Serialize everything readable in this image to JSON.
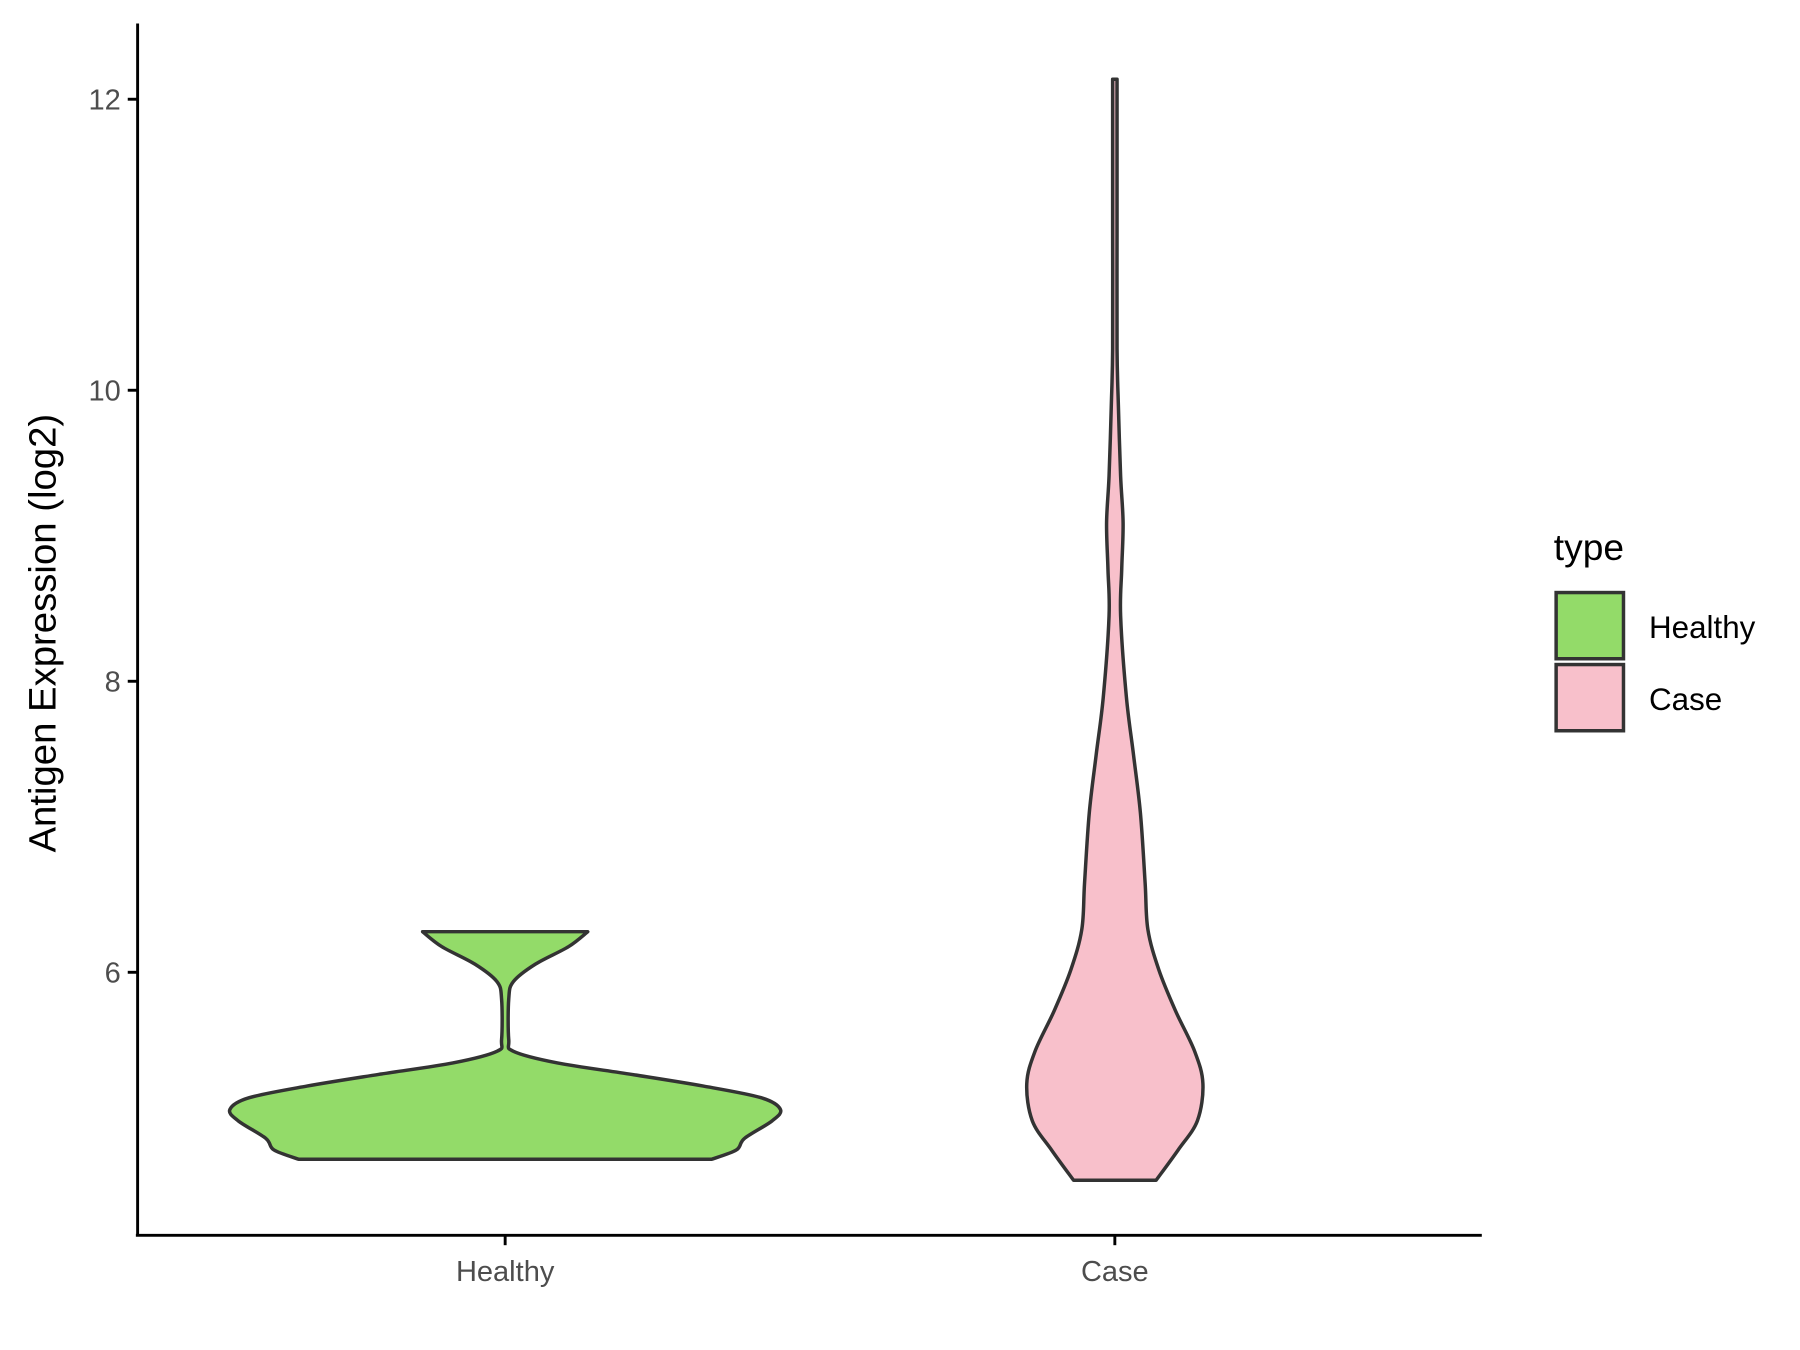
{
  "chart_data": {
    "type": "violin",
    "title": "",
    "xlabel": "",
    "ylabel": "Antigen Expression (log2)",
    "categories": [
      "Healthy",
      "Case"
    ],
    "ylim": [
      4.2,
      12.5
    ],
    "yticks": [
      6,
      8,
      10,
      12
    ],
    "grid": false,
    "legend": {
      "title": "type",
      "placement": "right",
      "entries": [
        "Healthy",
        "Case"
      ]
    },
    "colors": {
      "Healthy": "#93DB69",
      "Case": "#F8C0CB",
      "outline": "#333333"
    },
    "series": [
      {
        "name": "Healthy",
        "density_profile": [
          [
            4.715,
            0.75
          ],
          [
            4.779,
            0.84
          ],
          [
            4.859,
            0.87
          ],
          [
            4.979,
            0.97
          ],
          [
            5.058,
            1.0
          ],
          [
            5.138,
            0.93
          ],
          [
            5.218,
            0.72
          ],
          [
            5.298,
            0.46
          ],
          [
            5.377,
            0.19
          ],
          [
            5.457,
            0.03
          ],
          [
            5.537,
            0.013
          ],
          [
            5.816,
            0.013
          ],
          [
            5.936,
            0.03
          ],
          [
            6.056,
            0.11
          ],
          [
            6.176,
            0.23
          ],
          [
            6.279,
            0.3
          ]
        ]
      },
      {
        "name": "Case",
        "density_profile": [
          [
            4.571,
            0.15
          ],
          [
            4.779,
            0.23
          ],
          [
            4.98,
            0.3
          ],
          [
            5.234,
            0.32
          ],
          [
            5.457,
            0.29
          ],
          [
            5.737,
            0.22
          ],
          [
            6.016,
            0.16
          ],
          [
            6.295,
            0.12
          ],
          [
            6.615,
            0.11
          ],
          [
            7.093,
            0.093
          ],
          [
            7.492,
            0.068
          ],
          [
            7.891,
            0.042
          ],
          [
            8.45,
            0.021
          ],
          [
            8.77,
            0.025
          ],
          [
            9.089,
            0.03
          ],
          [
            9.41,
            0.021
          ],
          [
            9.887,
            0.013
          ],
          [
            10.286,
            0.008
          ],
          [
            11.08,
            0.008
          ],
          [
            11.88,
            0.008
          ],
          [
            12.137,
            0.008
          ]
        ]
      }
    ]
  }
}
